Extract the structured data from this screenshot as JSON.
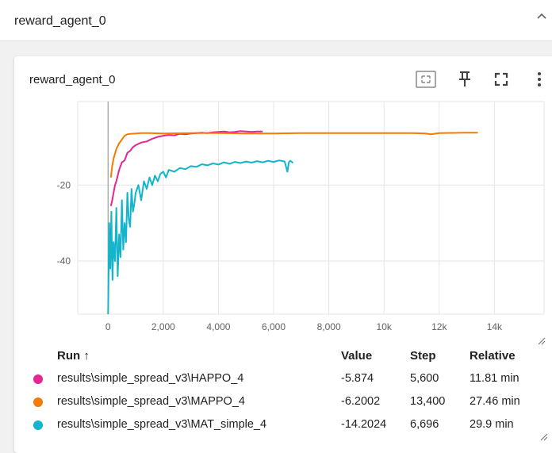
{
  "header": {
    "title": "reward_agent_0"
  },
  "card": {
    "title": "reward_agent_0"
  },
  "icons": [
    "fit-domain-icon",
    "pin-icon",
    "fullscreen-icon",
    "more-vert-icon",
    "collapse-chevron-icon"
  ],
  "colors": {
    "happo": "#e52592",
    "mappo": "#f57c00",
    "mat": "#12b5cb",
    "grid": "#e6e6e6"
  },
  "chart_data": {
    "type": "line",
    "title": "",
    "xlabel": "",
    "ylabel": "",
    "xlim": [
      -1100,
      15800
    ],
    "ylim": [
      -54,
      2
    ],
    "x_ticks": [
      {
        "value": 0,
        "label": "0"
      },
      {
        "value": 2000,
        "label": "2,000"
      },
      {
        "value": 4000,
        "label": "4,000"
      },
      {
        "value": 6000,
        "label": "6,000"
      },
      {
        "value": 8000,
        "label": "8,000"
      },
      {
        "value": 10000,
        "label": "10k"
      },
      {
        "value": 12000,
        "label": "12k"
      },
      {
        "value": 14000,
        "label": "14k"
      }
    ],
    "y_ticks": [
      {
        "value": -20,
        "label": "-20"
      },
      {
        "value": -40,
        "label": "-40"
      }
    ],
    "grid": true,
    "series": [
      {
        "name": "results\\simple_spread_v3\\HAPPO_4",
        "x": [
          100,
          150,
          200,
          250,
          300,
          400,
          500,
          600,
          700,
          800,
          900,
          1000,
          1200,
          1400,
          1600,
          1800,
          2000,
          2200,
          2400,
          2600,
          2800,
          3000,
          3200,
          3400,
          3600,
          3800,
          4000,
          4200,
          4400,
          4600,
          4800,
          5000,
          5200,
          5400,
          5600
        ],
        "y": [
          -25.5,
          -24,
          -22,
          -20,
          -19,
          -16,
          -14,
          -13.5,
          -11.5,
          -11,
          -10,
          -9.5,
          -8.8,
          -8.5,
          -7.8,
          -7.3,
          -7.0,
          -6.8,
          -6.9,
          -6.5,
          -6.6,
          -6.4,
          -6.3,
          -6.2,
          -6.3,
          -6.1,
          -6.0,
          -5.9,
          -6.1,
          -6.0,
          -5.8,
          -5.9,
          -6.0,
          -5.9,
          -5.874
        ]
      },
      {
        "name": "results\\simple_spread_v3\\MAPPO_4",
        "x": [
          100,
          150,
          200,
          300,
          400,
          500,
          600,
          700,
          800,
          1000,
          1200,
          1500,
          2000,
          3000,
          4000,
          5000,
          6000,
          7000,
          8000,
          9000,
          10000,
          11000,
          11500,
          11700,
          12000,
          13000,
          13400
        ],
        "y": [
          -18,
          -15,
          -13,
          -10.5,
          -9,
          -8,
          -7,
          -6.6,
          -6.5,
          -6.4,
          -6.3,
          -6.3,
          -6.4,
          -6.3,
          -6.3,
          -6.4,
          -6.4,
          -6.3,
          -6.3,
          -6.3,
          -6.3,
          -6.3,
          -6.4,
          -6.6,
          -6.3,
          -6.2,
          -6.2002
        ]
      },
      {
        "name": "results\\simple_spread_v3\\MAT_simple_4",
        "x": [
          0,
          40,
          80,
          120,
          160,
          200,
          250,
          300,
          350,
          400,
          450,
          500,
          550,
          600,
          650,
          700,
          750,
          800,
          850,
          900,
          950,
          1000,
          1100,
          1200,
          1300,
          1400,
          1500,
          1600,
          1700,
          1800,
          1900,
          2000,
          2100,
          2200,
          2400,
          2600,
          2800,
          3000,
          3200,
          3400,
          3600,
          3800,
          4000,
          4200,
          4400,
          4600,
          4800,
          5000,
          5200,
          5400,
          5600,
          5800,
          6000,
          6200,
          6400,
          6500,
          6550,
          6600,
          6650,
          6696
        ],
        "y": [
          -54,
          -30,
          -42,
          -27,
          -45,
          -35,
          -40,
          -26,
          -44,
          -33,
          -39,
          -24,
          -37,
          -30,
          -35,
          -22,
          -29,
          -31,
          -21,
          -27,
          -25,
          -22,
          -20,
          -24,
          -19,
          -21,
          -18,
          -20,
          -17.5,
          -19,
          -17,
          -16.5,
          -18,
          -16,
          -16.5,
          -15.5,
          -15.8,
          -15,
          -15.2,
          -14.5,
          -14.8,
          -14.3,
          -14.6,
          -14.0,
          -14.4,
          -13.9,
          -14.2,
          -13.8,
          -14.1,
          -13.7,
          -14.0,
          -13.6,
          -13.9,
          -13.5,
          -13.8,
          -16.5,
          -14.0,
          -13.6,
          -13.8,
          -14.2024
        ]
      }
    ]
  },
  "table": {
    "headers": {
      "run": "Run ↑",
      "value": "Value",
      "step": "Step",
      "relative": "Relative"
    },
    "rows": [
      {
        "run": "results\\simple_spread_v3\\HAPPO_4",
        "value": "-5.874",
        "step": "5,600",
        "relative": "11.81 min",
        "color": "#e52592"
      },
      {
        "run": "results\\simple_spread_v3\\MAPPO_4",
        "value": "-6.2002",
        "step": "13,400",
        "relative": "27.46 min",
        "color": "#f57c00"
      },
      {
        "run": "results\\simple_spread_v3\\MAT_simple_4",
        "value": "-14.2024",
        "step": "6,696",
        "relative": "29.9 min",
        "color": "#12b5cb"
      }
    ]
  }
}
